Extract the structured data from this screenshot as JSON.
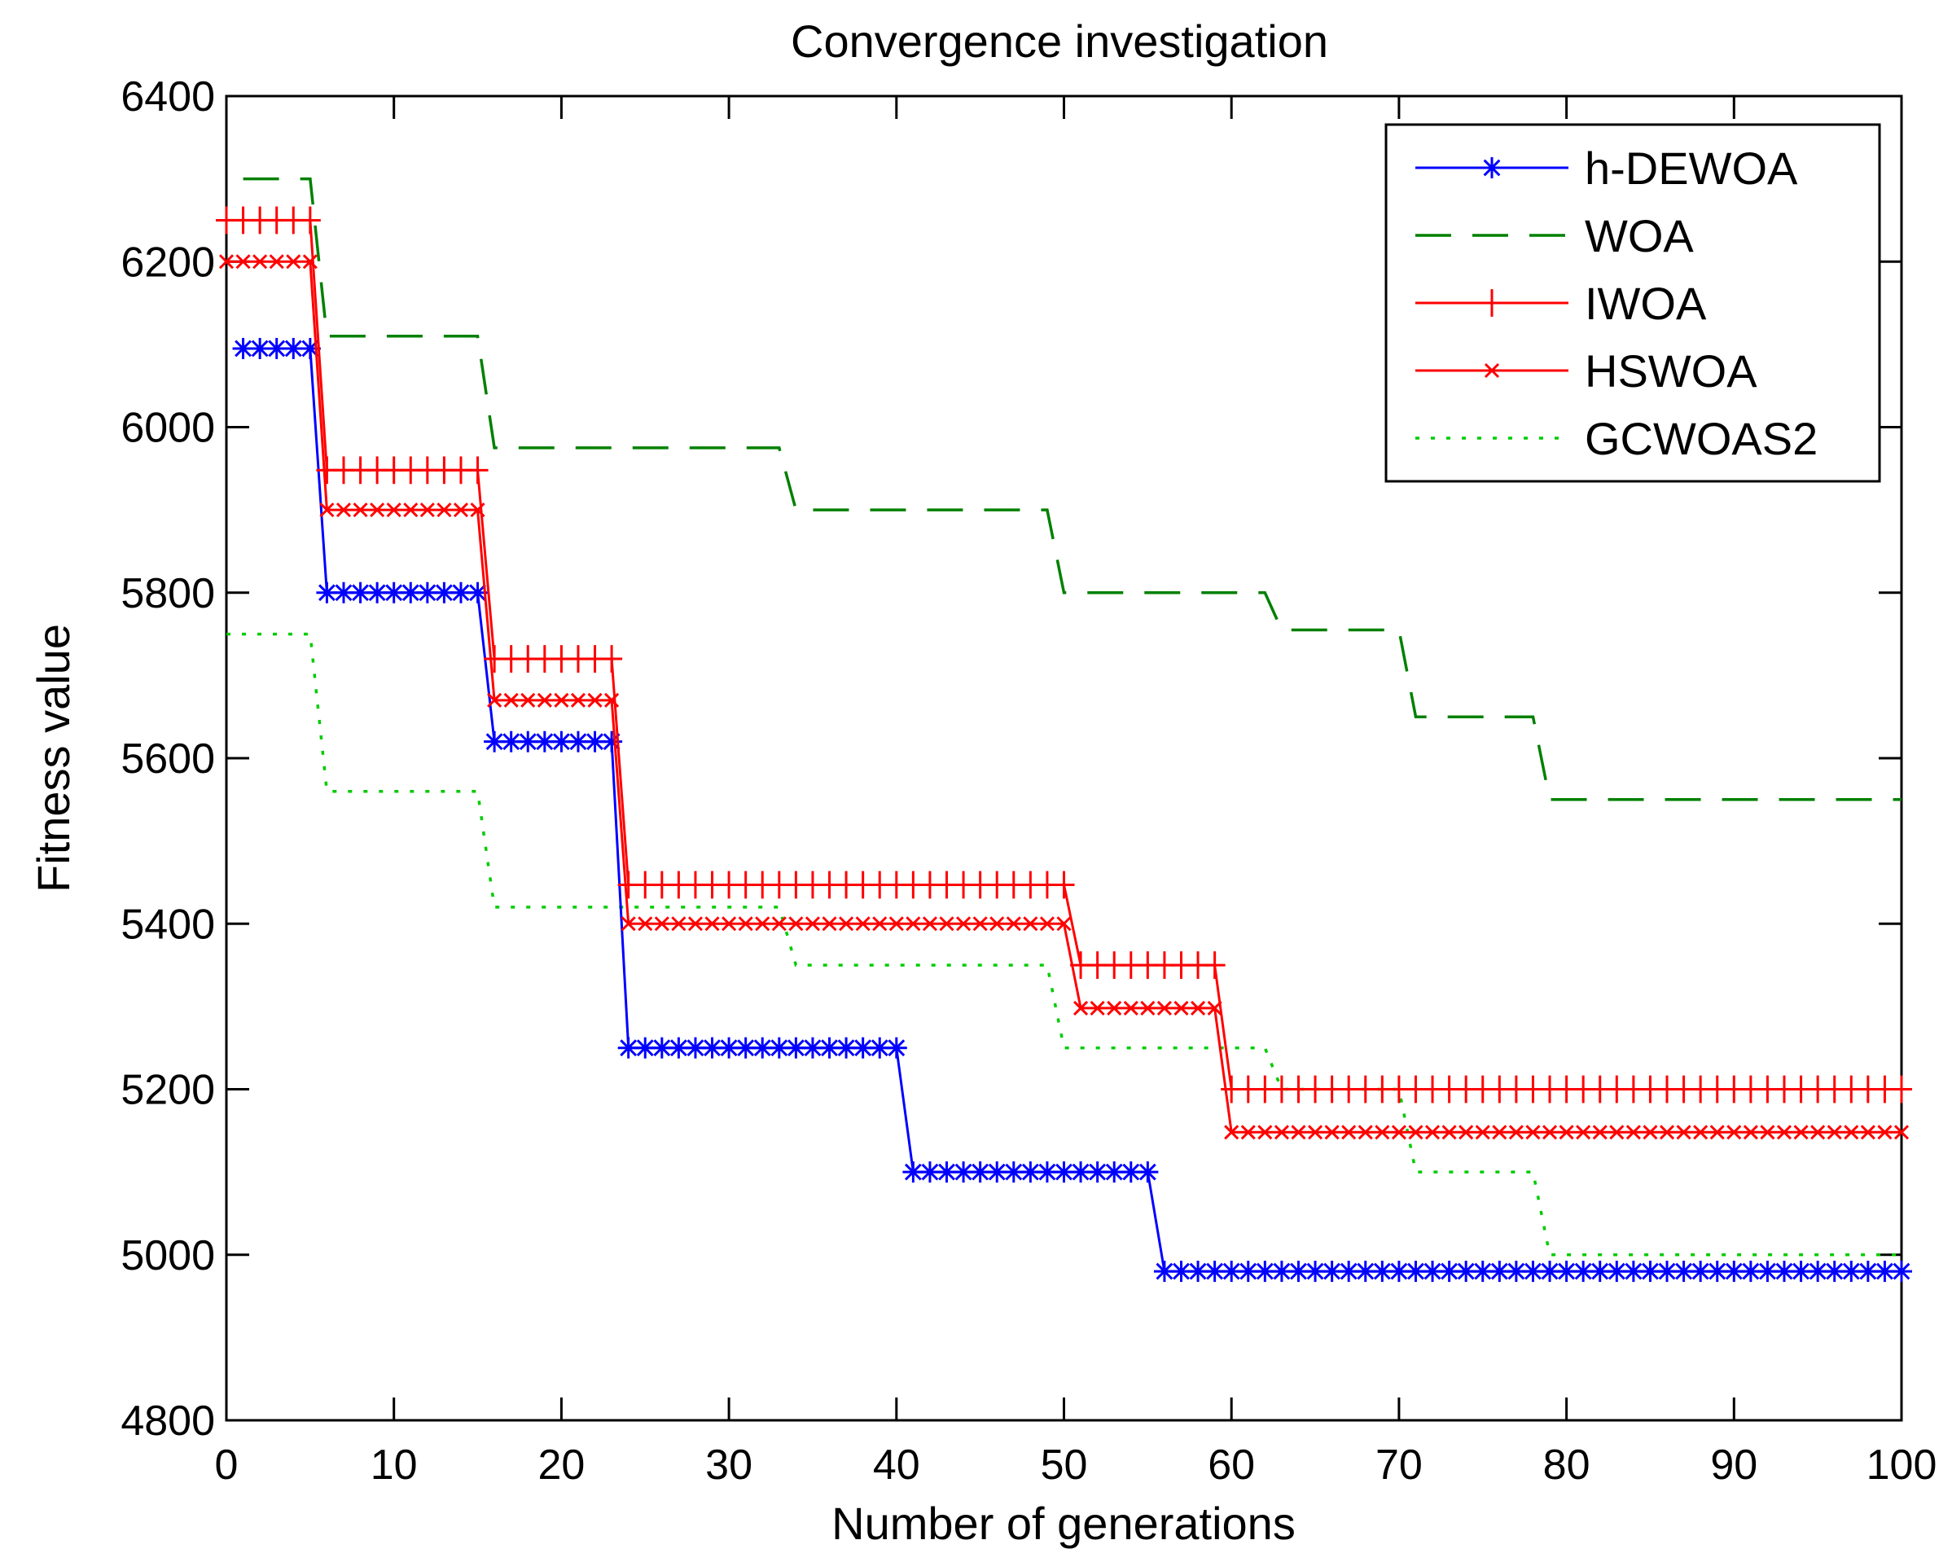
{
  "chart_data": {
    "type": "line",
    "title": "Convergence investigation",
    "xlabel": "Number of generations",
    "ylabel": "Fitness value",
    "xlim": [
      0,
      100
    ],
    "ylim": [
      4800,
      6400
    ],
    "xticks": [
      0,
      10,
      20,
      30,
      40,
      50,
      60,
      70,
      80,
      90,
      100
    ],
    "yticks": [
      4800,
      5000,
      5200,
      5400,
      5600,
      5800,
      6000,
      6200,
      6400
    ],
    "legend_position": "top-right",
    "series": [
      {
        "name": "h-DEWOA",
        "color": "#0000ff",
        "line_style": "solid",
        "marker": "asterisk",
        "x": [
          1,
          5,
          6,
          15,
          16,
          23,
          24,
          40,
          41,
          55,
          56,
          100
        ],
        "y": [
          6095,
          6095,
          5800,
          5800,
          5620,
          5620,
          5250,
          5250,
          5100,
          5100,
          4980,
          4980
        ]
      },
      {
        "name": "WOA",
        "color": "#008000",
        "line_style": "dashed",
        "marker": "none",
        "x": [
          1,
          5,
          6,
          15,
          16,
          33,
          34,
          49,
          50,
          62,
          63,
          70,
          71,
          78,
          79,
          100
        ],
        "y": [
          6300,
          6300,
          6110,
          6110,
          5975,
          5975,
          5900,
          5900,
          5800,
          5800,
          5755,
          5755,
          5650,
          5650,
          5550,
          5550
        ]
      },
      {
        "name": "IWOA",
        "color": "#ff0000",
        "line_style": "solid",
        "marker": "plus",
        "x": [
          0,
          5,
          6,
          15,
          16,
          23,
          24,
          50,
          51,
          59,
          60,
          100
        ],
        "y": [
          6250,
          6250,
          5948,
          5948,
          5720,
          5720,
          5447,
          5447,
          5350,
          5350,
          5200,
          5200
        ]
      },
      {
        "name": "HSWOA",
        "color": "#ff0000",
        "line_style": "solid",
        "marker": "x",
        "x": [
          0,
          5,
          6,
          15,
          16,
          23,
          24,
          50,
          51,
          59,
          60,
          100
        ],
        "y": [
          6200,
          6200,
          5900,
          5900,
          5670,
          5670,
          5400,
          5400,
          5298,
          5298,
          5148,
          5148
        ]
      },
      {
        "name": "GCWOAS2",
        "color": "#00cc00",
        "line_style": "dotted",
        "marker": "none",
        "x": [
          0,
          5,
          6,
          15,
          16,
          33,
          34,
          49,
          50,
          62,
          63,
          70,
          71,
          78,
          79,
          100
        ],
        "y": [
          5750,
          5750,
          5560,
          5560,
          5420,
          5420,
          5350,
          5350,
          5250,
          5250,
          5200,
          5200,
          5100,
          5100,
          5000,
          5000
        ]
      }
    ]
  }
}
